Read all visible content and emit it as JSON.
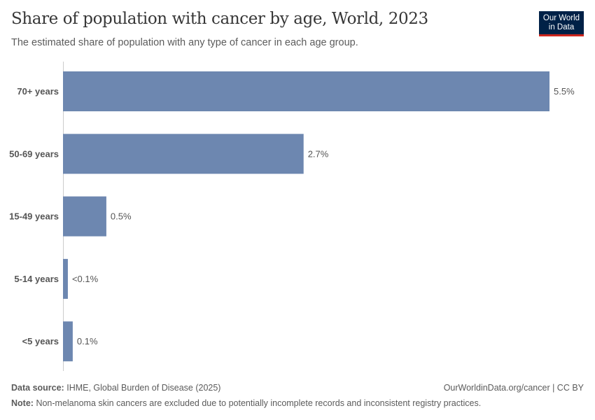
{
  "header": {
    "title": "Share of population with cancer by age, World, 2023",
    "subtitle": "The estimated share of population with any type of cancer in each age group.",
    "logo": "Our World in Data"
  },
  "chart_data": {
    "type": "bar",
    "orientation": "horizontal",
    "categories": [
      "70+ years",
      "50-69 years",
      "15-49 years",
      "5-14 years",
      "<5 years"
    ],
    "values": [
      5.5,
      2.72,
      0.49,
      0.055,
      0.11
    ],
    "data_labels": [
      "5.5%",
      "2.7%",
      "0.5%",
      "<0.1%",
      "0.1%"
    ],
    "unit": "%",
    "xlim": [
      0,
      5.5
    ],
    "grid": false,
    "bar_color": "#6D87B0"
  },
  "footer": {
    "source_label": "Data source:",
    "source": "IHME, Global Burden of Disease (2025)",
    "url": "OurWorldinData.org/cancer | CC BY",
    "note_label": "Note:",
    "note": "Non-melanoma skin cancers are excluded due to potentially incomplete records and inconsistent registry practices."
  }
}
